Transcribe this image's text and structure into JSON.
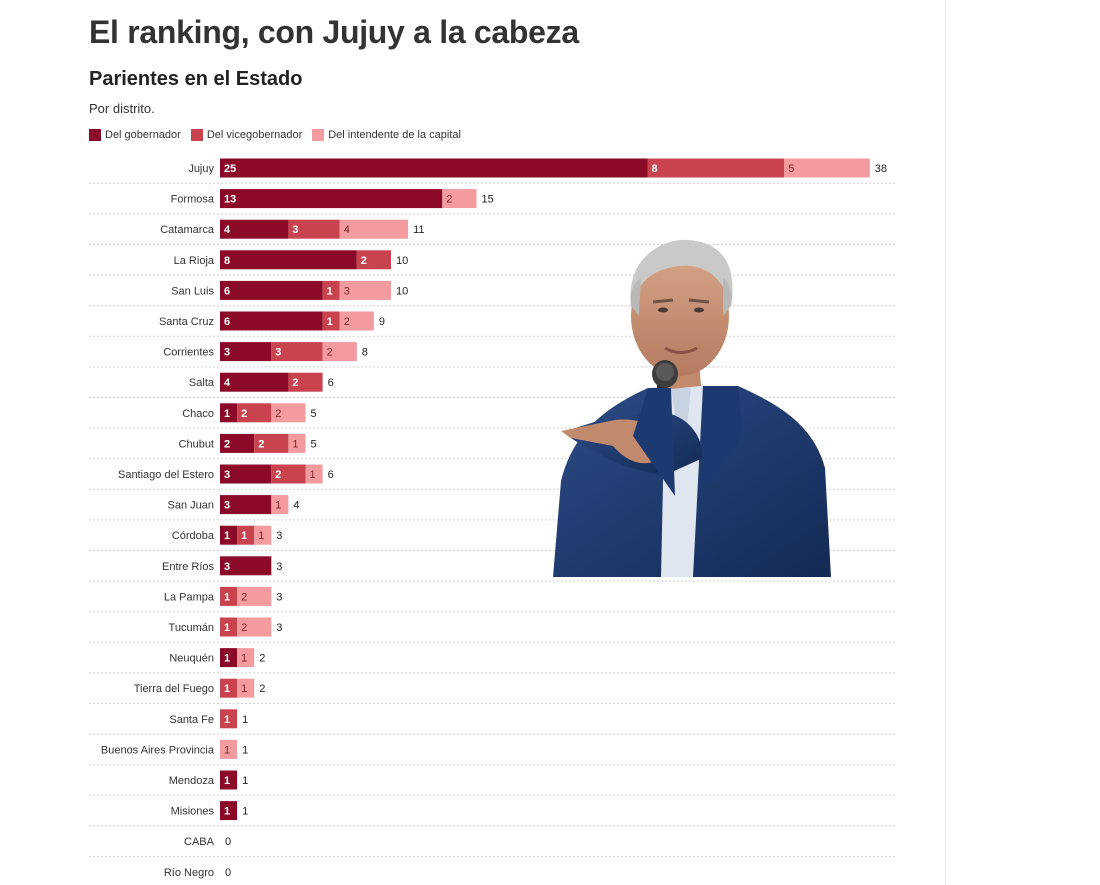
{
  "headline": "El ranking, con Jujuy a la cabeza",
  "chart_data": {
    "type": "bar",
    "orientation": "horizontal",
    "stacked": true,
    "title": "Parientes en el Estado",
    "subtitle": "Por distrito.",
    "xlim": [
      0,
      38
    ],
    "grid": false,
    "legend_position": "top-left",
    "categories": [
      "Jujuy",
      "Formosa",
      "Catamarca",
      "La Rioja",
      "San Luis",
      "Santa Cruz",
      "Corrientes",
      "Salta",
      "Chaco",
      "Chubut",
      "Santiago del Estero",
      "San Juan",
      "Córdoba",
      "Entre Ríos",
      "La Pampa",
      "Tucumán",
      "Neuquén",
      "Tierra del Fuego",
      "Santa Fe",
      "Buenos Aires Provincia",
      "Mendoza",
      "Misiones",
      "CABA",
      "Río Negro"
    ],
    "series": [
      {
        "name": "Del gobernador",
        "color": "#8a0a27",
        "label_color": "#ffffff",
        "values": [
          25,
          13,
          4,
          8,
          6,
          6,
          3,
          4,
          1,
          2,
          3,
          3,
          1,
          3,
          0,
          0,
          1,
          0,
          0,
          0,
          1,
          1,
          0,
          0
        ]
      },
      {
        "name": "Del vicegobernador",
        "color": "#c9434f",
        "label_color": "#ffffff",
        "values": [
          8,
          0,
          3,
          2,
          1,
          1,
          3,
          2,
          2,
          2,
          2,
          0,
          1,
          0,
          1,
          1,
          0,
          1,
          1,
          0,
          0,
          0,
          0,
          0
        ]
      },
      {
        "name": "Del intendente de la capital",
        "color": "#f49ba0",
        "label_color": "#7a2a2a",
        "values": [
          5,
          2,
          4,
          0,
          3,
          2,
          2,
          0,
          2,
          1,
          1,
          1,
          1,
          0,
          2,
          2,
          1,
          1,
          0,
          1,
          0,
          0,
          0,
          0
        ]
      }
    ],
    "totals": [
      38,
      15,
      11,
      10,
      10,
      9,
      8,
      6,
      5,
      5,
      6,
      4,
      3,
      3,
      3,
      3,
      2,
      2,
      1,
      1,
      1,
      1,
      0,
      0
    ]
  },
  "photo": {
    "alt": "Hombre de traje azul hablando con un micrófono",
    "icon": "person-photo"
  }
}
